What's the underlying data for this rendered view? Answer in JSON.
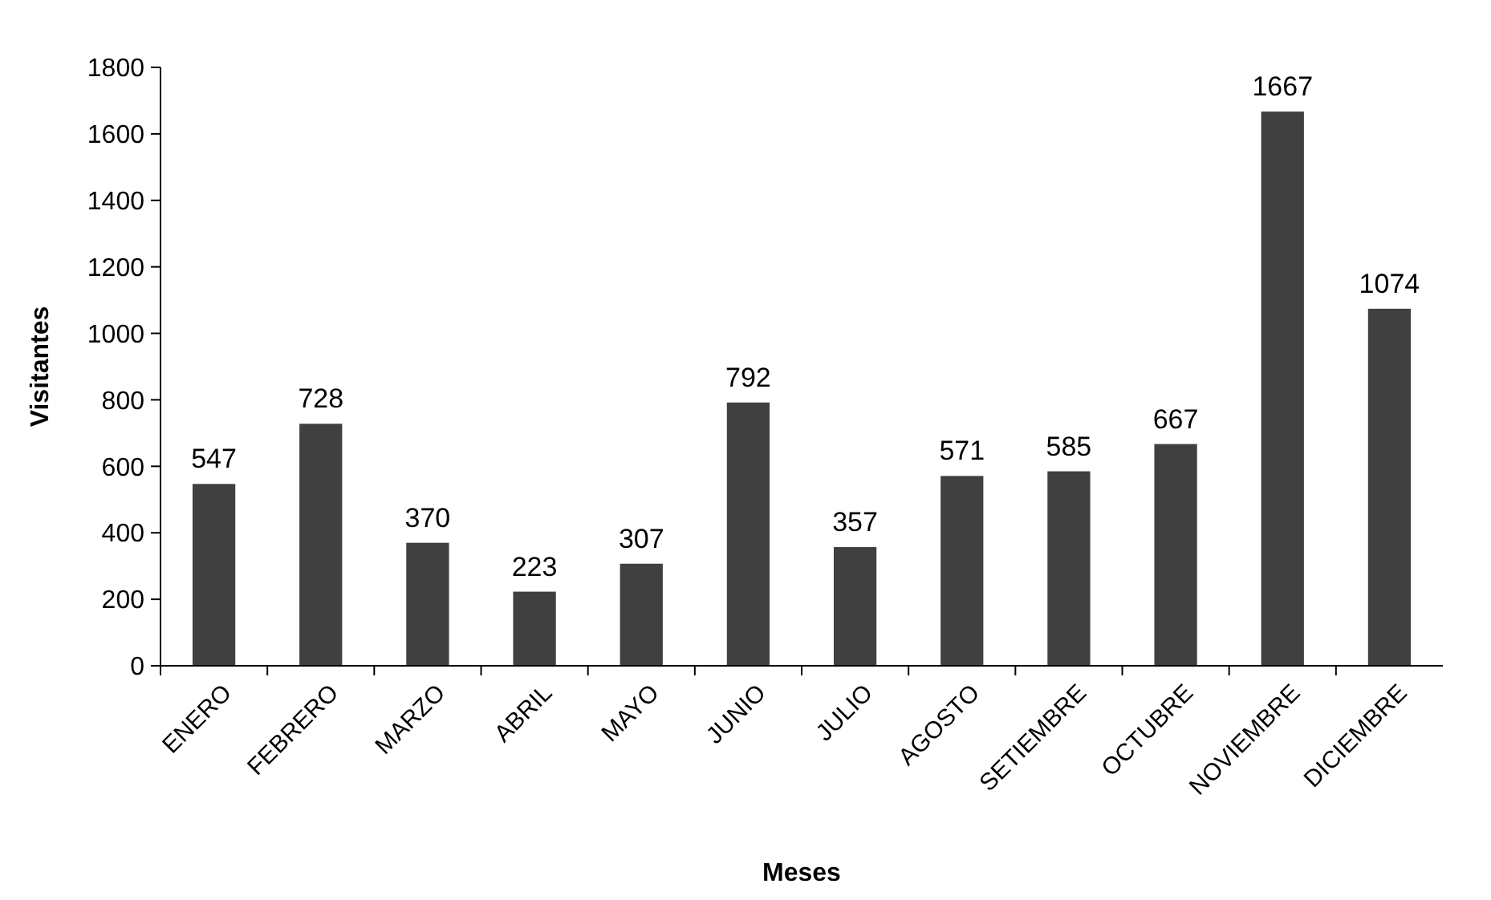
{
  "chart_data": {
    "type": "bar",
    "xlabel": "Meses",
    "ylabel": "Visitantes",
    "categories": [
      "ENERO",
      "FEBRERO",
      "MARZO",
      "ABRIL",
      "MAYO",
      "JUNIO",
      "JULIO",
      "AGOSTO",
      "SETIEMBRE",
      "OCTUBRE",
      "NOVIEMBRE",
      "DICIEMBRE"
    ],
    "values": [
      547,
      728,
      370,
      223,
      307,
      792,
      357,
      571,
      585,
      667,
      1667,
      1074
    ],
    "color": "#404040",
    "ylim": [
      0,
      1800
    ],
    "yticks": [
      0,
      200,
      400,
      600,
      800,
      1000,
      1200,
      1400,
      1600,
      1800
    ],
    "grid": false,
    "data_labels": true
  }
}
